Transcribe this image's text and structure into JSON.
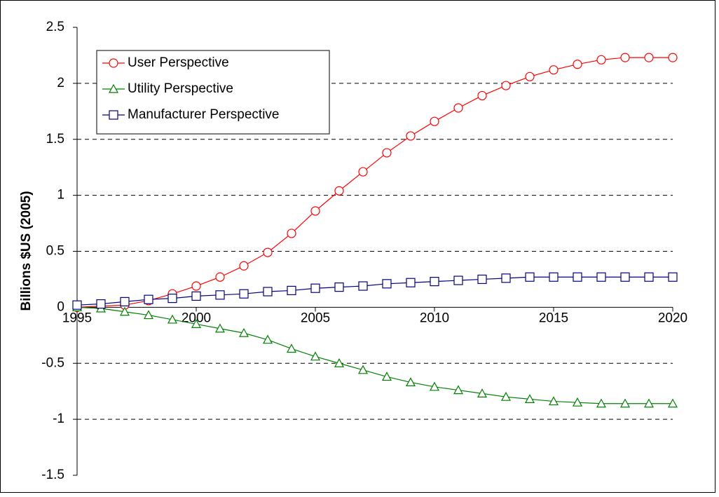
{
  "chart_data": {
    "type": "line",
    "y_label": "Billions $US (2005)",
    "x": [
      1995,
      1996,
      1997,
      1998,
      1999,
      2000,
      2001,
      2002,
      2003,
      2004,
      2005,
      2006,
      2007,
      2008,
      2009,
      2010,
      2011,
      2012,
      2013,
      2014,
      2015,
      2016,
      2017,
      2018,
      2019,
      2020
    ],
    "xlim": [
      1995,
      2020
    ],
    "xticks": [
      1995,
      2000,
      2005,
      2010,
      2015,
      2020
    ],
    "ylim": [
      -1.5,
      2.5
    ],
    "yticks": [
      2.5,
      2,
      1.5,
      1,
      0.5,
      0,
      -0.5,
      -1,
      -1.5
    ],
    "grid": true,
    "legend": "top-left",
    "series": [
      {
        "name": "User Perspective",
        "color": "#ff0000",
        "marker": "circle",
        "values": [
          0,
          0.01,
          0.02,
          0.06,
          0.12,
          0.19,
          0.27,
          0.37,
          0.49,
          0.66,
          0.86,
          1.04,
          1.21,
          1.38,
          1.53,
          1.66,
          1.78,
          1.89,
          1.98,
          2.06,
          2.12,
          2.17,
          2.21,
          2.23,
          2.23,
          2.23
        ]
      },
      {
        "name": "Utility Perspective",
        "color": "#008000",
        "marker": "triangle",
        "values": [
          0,
          -0.01,
          -0.04,
          -0.07,
          -0.11,
          -0.15,
          -0.19,
          -0.23,
          -0.29,
          -0.37,
          -0.44,
          -0.5,
          -0.56,
          -0.62,
          -0.67,
          -0.71,
          -0.74,
          -0.77,
          -0.8,
          -0.82,
          -0.84,
          -0.85,
          -0.86,
          -0.86,
          -0.86,
          -0.86
        ]
      },
      {
        "name": "Manufacturer Perspective",
        "color": "#000080",
        "marker": "square",
        "values": [
          0.02,
          0.03,
          0.05,
          0.07,
          0.08,
          0.1,
          0.11,
          0.12,
          0.14,
          0.15,
          0.17,
          0.18,
          0.19,
          0.21,
          0.22,
          0.23,
          0.24,
          0.25,
          0.26,
          0.27,
          0.27,
          0.27,
          0.27,
          0.27,
          0.27,
          0.27
        ]
      }
    ]
  }
}
